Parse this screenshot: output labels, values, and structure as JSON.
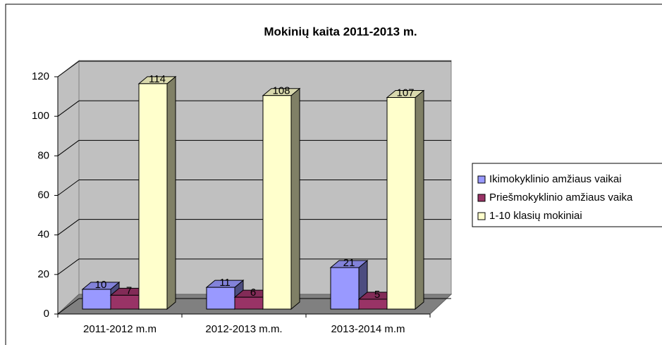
{
  "chart_data": {
    "type": "bar",
    "title": "Mokinių kaita 2011-2013 m.",
    "categories": [
      "2011-2012 m.m",
      "2012-2013 m.m.",
      "2013-2014 m.m"
    ],
    "series": [
      {
        "name": "Ikimokyklinio amžiaus vaikai",
        "color": "#9999ff",
        "values": [
          10,
          11,
          21
        ]
      },
      {
        "name": "Priešmokyklinio amžiaus vaika",
        "color": "#993366",
        "values": [
          7,
          6,
          5
        ]
      },
      {
        "name": "1-10 klasių mokiniai",
        "color": "#ffffcc",
        "values": [
          114,
          108,
          107
        ]
      }
    ],
    "ylim": [
      0,
      120
    ],
    "yticks": [
      0,
      20,
      40,
      60,
      80,
      100,
      120
    ],
    "grid": true,
    "legend": "right"
  }
}
